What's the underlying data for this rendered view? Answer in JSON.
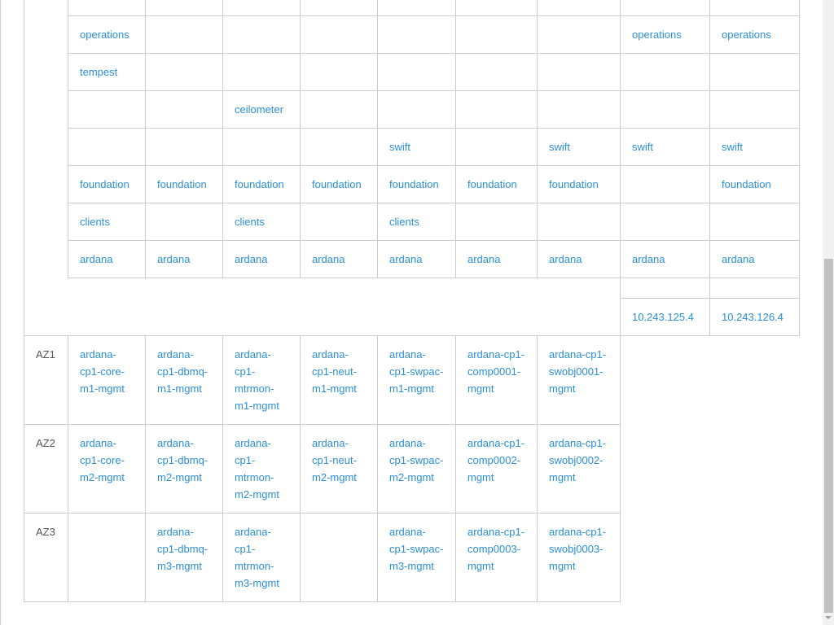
{
  "service_rows": [
    [
      "",
      "",
      "",
      "",
      "",
      "",
      "",
      "",
      ""
    ],
    [
      "operations",
      "",
      "",
      "",
      "",
      "",
      "",
      "operations",
      "operations"
    ],
    [
      "tempest",
      "",
      "",
      "",
      "",
      "",
      "",
      "",
      ""
    ],
    [
      "",
      "",
      "ceilometer",
      "",
      "",
      "",
      "",
      "",
      ""
    ],
    [
      "",
      "",
      "",
      "",
      "swift",
      "",
      "swift",
      "swift",
      "swift"
    ],
    [
      "foundation",
      "foundation",
      "foundation",
      "foundation",
      "foundation",
      "foundation",
      "foundation",
      "",
      "foundation"
    ],
    [
      "clients",
      "",
      "clients",
      "",
      "clients",
      "",
      "",
      "",
      ""
    ],
    [
      "ardana",
      "ardana",
      "ardana",
      "ardana",
      "ardana",
      "ardana",
      "ardana",
      "ardana",
      "ardana"
    ]
  ],
  "ip_rows": [
    [
      "",
      ""
    ],
    [
      "10.243.125.4",
      "10.243.126.4"
    ]
  ],
  "az_rows": [
    {
      "zone": "AZ1",
      "hosts": [
        "ardana-cp1-core-m1-mgmt",
        "ardana-cp1-dbmq-m1-mgmt",
        "ardana-cp1-mtrmon-m1-mgmt",
        "ardana-cp1-neut-m1-mgmt",
        "ardana-cp1-swpac-m1-mgmt",
        "ardana-cp1-comp0001-mgmt",
        "ardana-cp1-swobj0001-mgmt"
      ]
    },
    {
      "zone": "AZ2",
      "hosts": [
        "ardana-cp1-core-m2-mgmt",
        "ardana-cp1-dbmq-m2-mgmt",
        "ardana-cp1-mtrmon-m2-mgmt",
        "ardana-cp1-neut-m2-mgmt",
        "ardana-cp1-swpac-m2-mgmt",
        "ardana-cp1-comp0002-mgmt",
        "ardana-cp1-swobj0002-mgmt"
      ]
    },
    {
      "zone": "AZ3",
      "hosts": [
        "",
        "ardana-cp1-dbmq-m3-mgmt",
        "ardana-cp1-mtrmon-m3-mgmt",
        "",
        "ardana-cp1-swpac-m3-mgmt",
        "ardana-cp1-comp0003-mgmt",
        "ardana-cp1-swobj0003-mgmt"
      ]
    }
  ],
  "colors": {
    "link": "#2b8fd6",
    "label": "#555555",
    "border": "#cccccc"
  }
}
